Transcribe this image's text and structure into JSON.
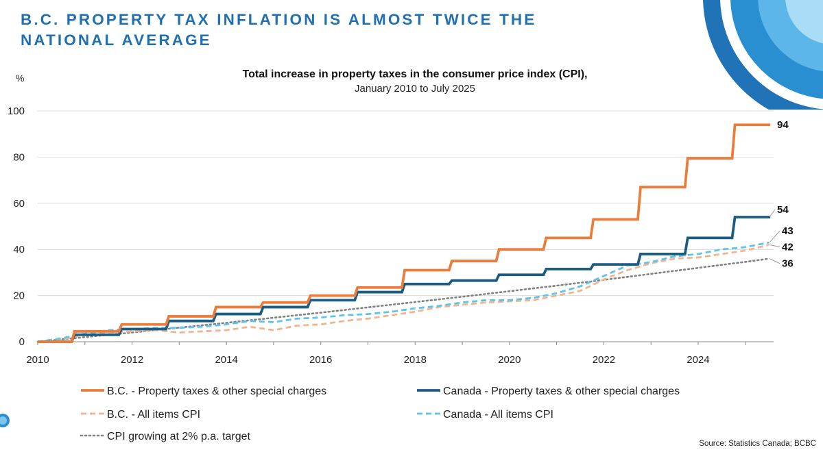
{
  "headline": "B.C. PROPERTY TAX INFLATION IS ALMOST TWICE THE NATIONAL AVERAGE",
  "source": "Source: Statistics Canada; BCBC",
  "colors": {
    "headline": "#1f6fb2",
    "bc_property": "#ea7d3c",
    "canada_property": "#1b5c82",
    "bc_cpi": "#f2b48f",
    "canada_cpi": "#5cc3ea",
    "cpi_target": "#808080"
  },
  "chart_data": {
    "type": "line",
    "title": "Total increase in property taxes in the consumer price index (CPI),",
    "subtitle": "January 2010 to July 2025",
    "ylabel": "%",
    "xlabel": "",
    "xlim": [
      2010,
      2025.6
    ],
    "ylim": [
      0,
      100
    ],
    "yticks": [
      0,
      20,
      40,
      60,
      80,
      100
    ],
    "xticks": [
      "2010",
      "2012",
      "2014",
      "2016",
      "2018",
      "2020",
      "2022",
      "2024"
    ],
    "grid": "horizontal",
    "legend_position": "bottom",
    "series": [
      {
        "name": "B.C. - Property taxes & other special charges",
        "style": "step-solid",
        "end_label": "94",
        "x": [
          2010,
          2010.75,
          2011.75,
          2012.75,
          2013.75,
          2014.75,
          2015.75,
          2016.75,
          2017.75,
          2018.75,
          2019.75,
          2020.75,
          2021.75,
          2022.75,
          2023.75,
          2024.75,
          2025.5
        ],
        "values": [
          0,
          4.5,
          7.5,
          11,
          15,
          17,
          20,
          23.5,
          31,
          35,
          40,
          45,
          53,
          67,
          79.5,
          94,
          94
        ]
      },
      {
        "name": "Canada - Property taxes & other special charges",
        "style": "step-solid",
        "end_label": "54",
        "x": [
          2010,
          2010.75,
          2011.75,
          2012.75,
          2013.75,
          2014.75,
          2015.75,
          2016.75,
          2017.75,
          2018.75,
          2019.75,
          2020.75,
          2021.75,
          2022.75,
          2023.75,
          2024.75,
          2025.5
        ],
        "values": [
          0,
          3,
          5.5,
          9,
          12,
          15,
          18,
          21.5,
          25,
          26.5,
          29,
          31.5,
          33.5,
          38,
          45,
          54,
          54
        ]
      },
      {
        "name": "B.C. - All items CPI",
        "style": "dashed",
        "end_label": "42",
        "x": [
          2010,
          2010.5,
          2011,
          2011.5,
          2012,
          2012.5,
          2013,
          2013.5,
          2014,
          2014.5,
          2015,
          2015.5,
          2016,
          2016.5,
          2017,
          2017.5,
          2018,
          2018.5,
          2019,
          2019.5,
          2020,
          2020.5,
          2021,
          2021.5,
          2022,
          2022.5,
          2023,
          2023.5,
          2024,
          2024.5,
          2025,
          2025.5
        ],
        "values": [
          0,
          1,
          3,
          4,
          4.5,
          5,
          4,
          4.5,
          5,
          6.5,
          5,
          7,
          7.5,
          9,
          10,
          11.5,
          13,
          15,
          16,
          17,
          17.5,
          18,
          20,
          22,
          27,
          31,
          34,
          36,
          36.5,
          38,
          39.5,
          42
        ]
      },
      {
        "name": "Canada - All items CPI",
        "style": "dashed",
        "end_label": "43",
        "x": [
          2010,
          2010.5,
          2011,
          2011.5,
          2012,
          2012.5,
          2013,
          2013.5,
          2014,
          2014.5,
          2015,
          2015.5,
          2016,
          2016.5,
          2017,
          2017.5,
          2018,
          2018.5,
          2019,
          2019.5,
          2020,
          2020.5,
          2021,
          2021.5,
          2022,
          2022.5,
          2023,
          2023.5,
          2024,
          2024.5,
          2025,
          2025.5
        ],
        "values": [
          0,
          1.5,
          3.5,
          5,
          5.5,
          6,
          6,
          6.5,
          7.5,
          9,
          8.5,
          10,
          10.5,
          11.5,
          12,
          13,
          14.5,
          15.5,
          17,
          18,
          18,
          19,
          21,
          24,
          28.5,
          33,
          34.5,
          37,
          38,
          40,
          41,
          43
        ]
      },
      {
        "name": "CPI growing at 2% p.a. target",
        "style": "dotted",
        "end_label": "36",
        "x": [
          2010,
          2011,
          2012,
          2013,
          2014,
          2015,
          2016,
          2017,
          2018,
          2019,
          2020,
          2021,
          2022,
          2023,
          2024,
          2025,
          2025.5
        ],
        "values": [
          0,
          2,
          4,
          6.1,
          8.2,
          10.4,
          12.6,
          14.9,
          17.2,
          19.5,
          21.9,
          24.3,
          26.8,
          29.4,
          32,
          34.6,
          36
        ]
      }
    ]
  }
}
